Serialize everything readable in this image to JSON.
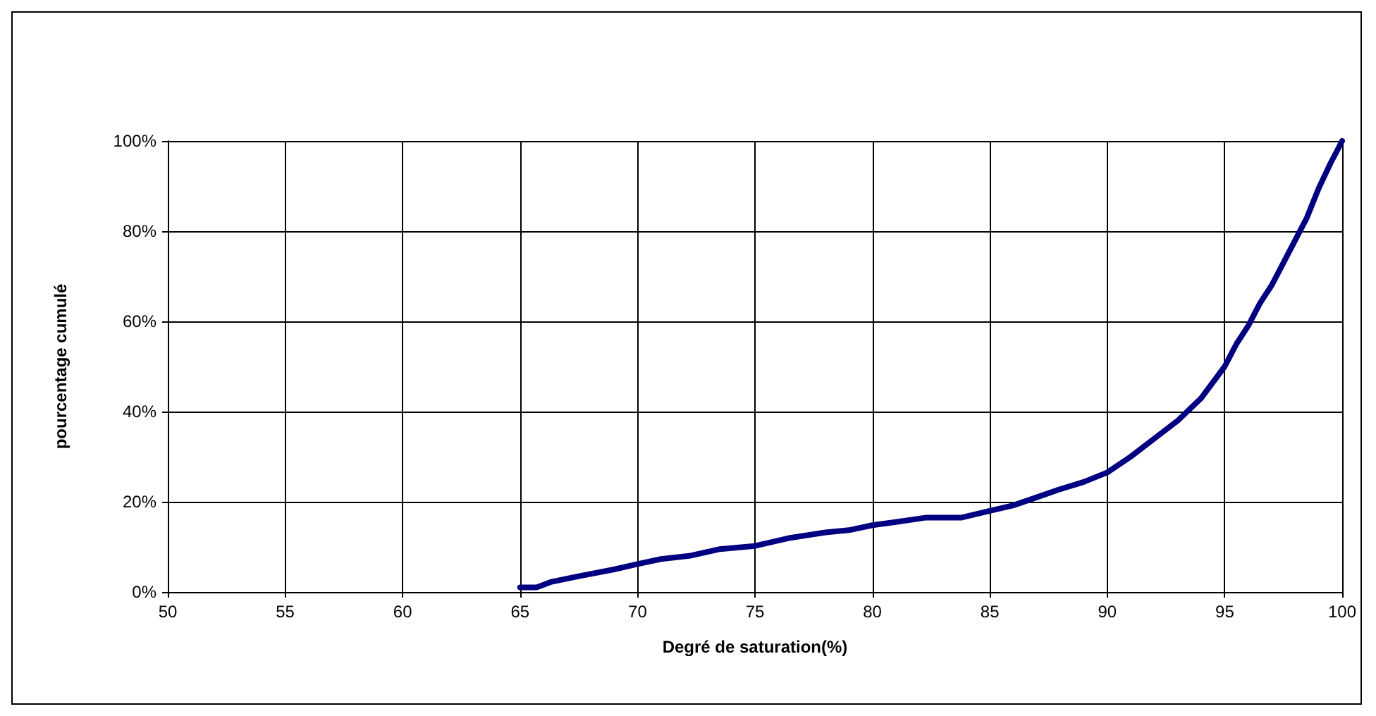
{
  "chart_data": {
    "type": "line",
    "xlabel": "Degré de saturation(%)",
    "ylabel": "pourcentage cumulé",
    "x": [
      65,
      65.7,
      66.3,
      67.5,
      69,
      70,
      71,
      72.2,
      73.5,
      75,
      76.5,
      78,
      79,
      80,
      81,
      82.3,
      83.8,
      85,
      86,
      87,
      88,
      89,
      90,
      91,
      92,
      93,
      94,
      95,
      95.5,
      96,
      96.5,
      97,
      98,
      98.5,
      99,
      99.5,
      100
    ],
    "series": [
      {
        "color": "#000080",
        "values": [
          1,
          1,
          2.2,
          3.5,
          5,
          6.2,
          7.3,
          8,
          9.5,
          10.2,
          12,
          13.2,
          13.7,
          14.8,
          15.5,
          16.5,
          16.5,
          18,
          19.2,
          21,
          22.8,
          24.4,
          26.5,
          30,
          34,
          38,
          43,
          50,
          55,
          59,
          64,
          68,
          78,
          83,
          89.5,
          95,
          100
        ]
      }
    ],
    "xlim": [
      50,
      100
    ],
    "xticks": [
      50,
      55,
      60,
      65,
      70,
      75,
      80,
      85,
      90,
      95,
      100
    ],
    "ylim": [
      0,
      100
    ],
    "yticks": [
      {
        "value": 0,
        "label": "0%"
      },
      {
        "value": 20,
        "label": "20%"
      },
      {
        "value": 40,
        "label": "40%"
      },
      {
        "value": 60,
        "label": "60%"
      },
      {
        "value": 80,
        "label": "80%"
      },
      {
        "value": 100,
        "label": "100%"
      }
    ],
    "grid": true,
    "marker": "none",
    "line_style": "solid"
  }
}
